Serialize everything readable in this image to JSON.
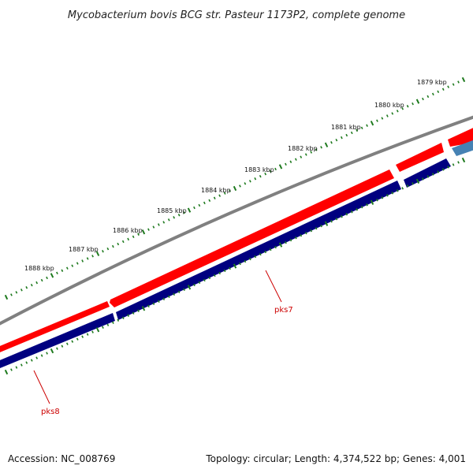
{
  "title": "Mycobacterium bovis BCG str. Pasteur 1173P2, complete genome",
  "footer": {
    "accession": "Accession: NC_008769",
    "summary": "Topology: circular; Length: 4,374,522 bp; Genes: 4,001"
  },
  "colors": {
    "backbone": "#808080",
    "forward_cds": "#ff0000",
    "reverse_cds": "#000080",
    "reverse_cds_other": "#4682b4",
    "tick": "#1e7a1e",
    "gene_label": "#cc0000"
  },
  "scale_labels": [
    "1879 kbp",
    "1880 kbp",
    "1881 kbp",
    "1882 kbp",
    "1883 kbp",
    "1884 kbp",
    "1885 kbp",
    "1886 kbp",
    "1887 kbp",
    "1888 kbp"
  ],
  "gene_labels": [
    {
      "name": "pks7",
      "strand": "reverse"
    },
    {
      "name": "pks8",
      "strand": "reverse"
    }
  ]
}
